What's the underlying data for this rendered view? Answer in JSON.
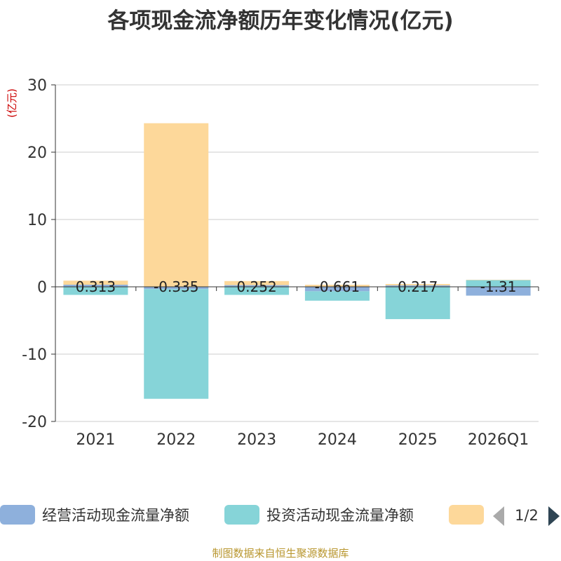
{
  "chart_data": {
    "type": "bar",
    "title": "各项现金流净额历年变化情况(亿元)",
    "ylabel": "(亿元)",
    "xlabel": "",
    "categories": [
      "2021",
      "2022",
      "2023",
      "2024",
      "2025",
      "2026Q1"
    ],
    "ylim": [
      -20,
      30
    ],
    "yticks": [
      -20,
      -10,
      0,
      10,
      20,
      30
    ],
    "stacked": true,
    "grid": true,
    "series": [
      {
        "name": "经营活动现金流量净额",
        "color": "#8eb0dc",
        "values": [
          0.313,
          -0.335,
          0.252,
          -0.661,
          0.217,
          -1.31
        ]
      },
      {
        "name": "投资活动现金流量净额",
        "color": "#86d4d8",
        "values": [
          -1.2,
          -16.3,
          -1.2,
          -1.4,
          -4.8,
          1.0
        ]
      },
      {
        "name": "",
        "color": "#fdd89a",
        "values": [
          0.6,
          24.3,
          0.6,
          0.3,
          0.2,
          0.05
        ]
      }
    ],
    "data_labels": [
      "0.313",
      "-0.335",
      "0.252",
      "-0.661",
      "0.217",
      "-1.31"
    ],
    "legend": {
      "placement": "bottom",
      "page": "1/2"
    }
  },
  "footer": {
    "source": "制图数据来自恒生聚源数据库"
  }
}
